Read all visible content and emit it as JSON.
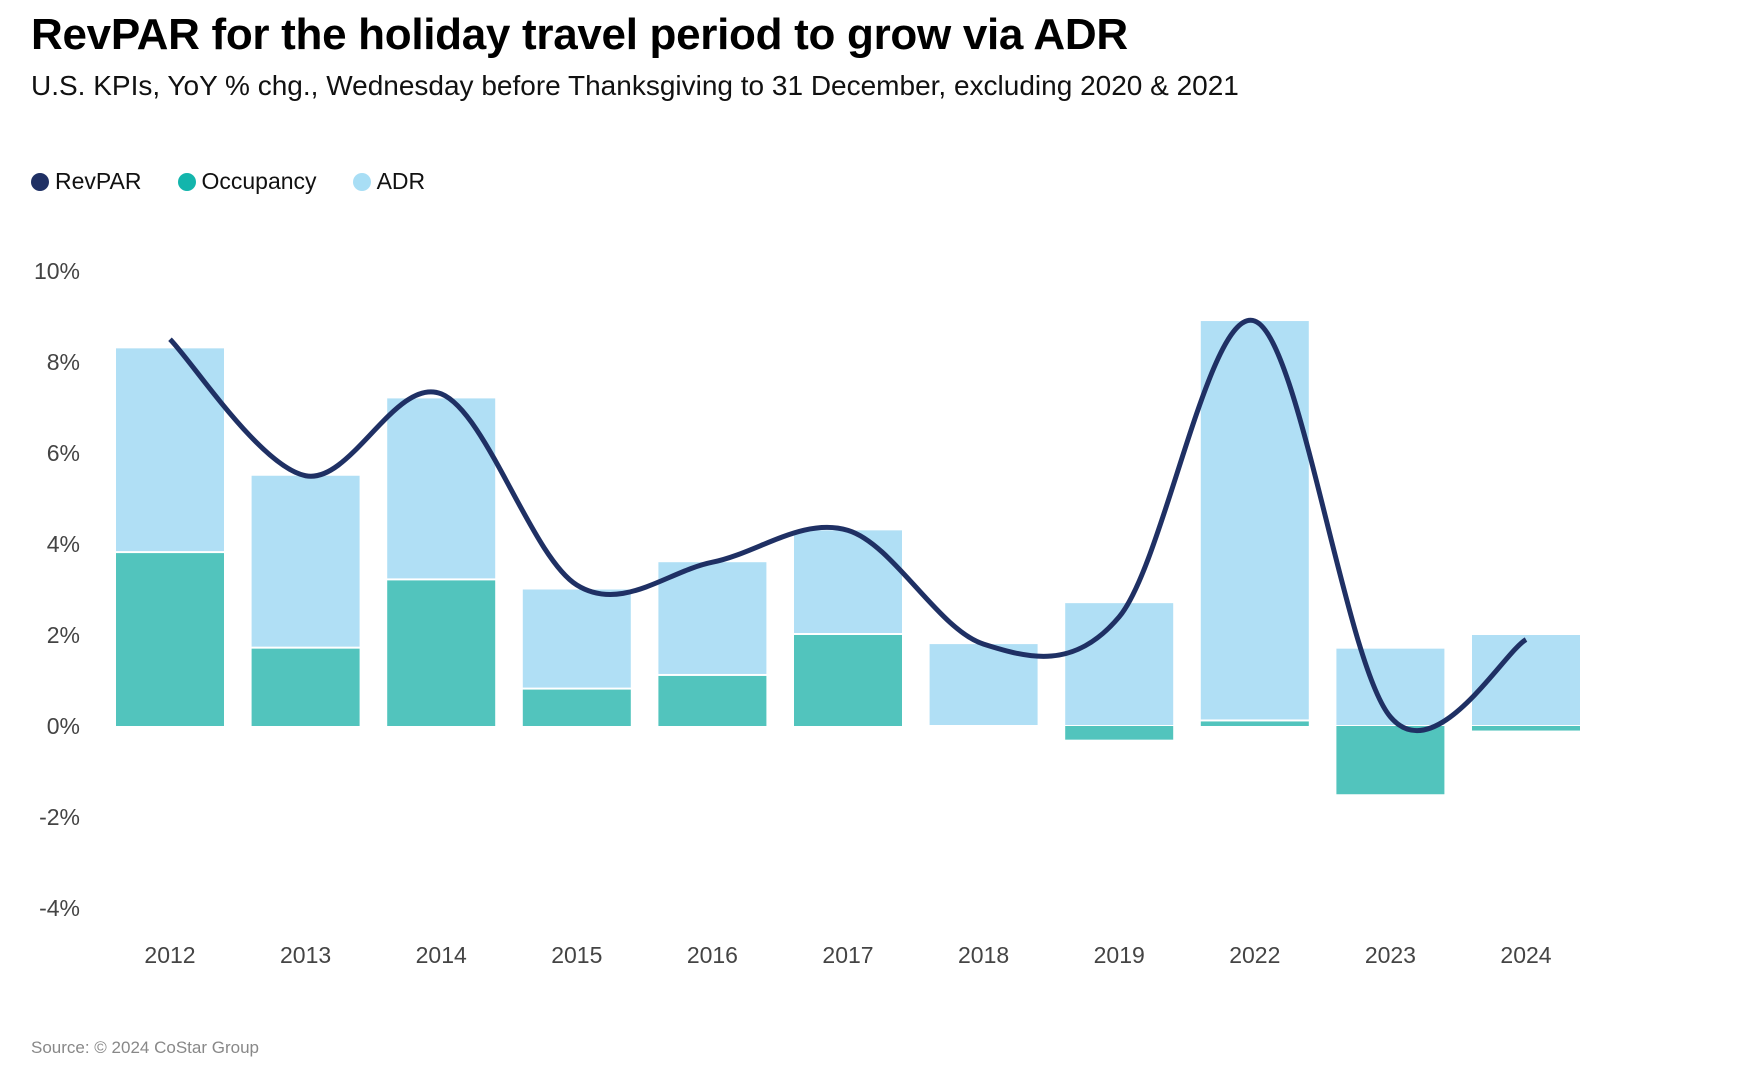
{
  "chart_data": {
    "type": "bar",
    "title": "RevPAR for the holiday travel period to grow via ADR",
    "subtitle": "U.S. KPIs, YoY % chg., Wednesday before Thanksgiving to 31 December, excluding 2020 & 2021",
    "categories": [
      "2012",
      "2013",
      "2014",
      "2015",
      "2016",
      "2017",
      "2018",
      "2019",
      "2022",
      "2023",
      "2024"
    ],
    "series": [
      {
        "name": "RevPAR",
        "kind": "line",
        "color": "#1f3064",
        "values": [
          8.5,
          5.5,
          7.3,
          3.1,
          3.6,
          4.3,
          1.8,
          2.4,
          8.9,
          0.2,
          1.9
        ]
      },
      {
        "name": "Occupancy",
        "kind": "stacked-bar",
        "color": "#52c4bd",
        "values": [
          3.8,
          1.7,
          3.2,
          0.8,
          1.1,
          2.0,
          0.0,
          -0.3,
          0.1,
          -1.5,
          -0.1
        ]
      },
      {
        "name": "ADR",
        "kind": "stacked-bar",
        "color": "#b0dff5",
        "values": [
          4.5,
          3.8,
          4.0,
          2.2,
          2.5,
          2.3,
          1.8,
          2.7,
          8.8,
          1.7,
          2.0
        ]
      }
    ],
    "legend_dot_colors": {
      "RevPAR": "#1f3064",
      "Occupancy": "#13b5ac",
      "ADR": "#a8def5"
    },
    "ylim": [
      -4,
      10
    ],
    "yticks": [
      10,
      8,
      6,
      4,
      2,
      0,
      -2,
      -4
    ],
    "ytick_labels": [
      "10%",
      "8%",
      "6%",
      "4%",
      "2%",
      "0%",
      "-2%",
      "-4%"
    ],
    "xlabel": "",
    "ylabel": "",
    "legend_position": "top-left",
    "grid": false,
    "source": "Source: © 2024 CoStar Group"
  }
}
